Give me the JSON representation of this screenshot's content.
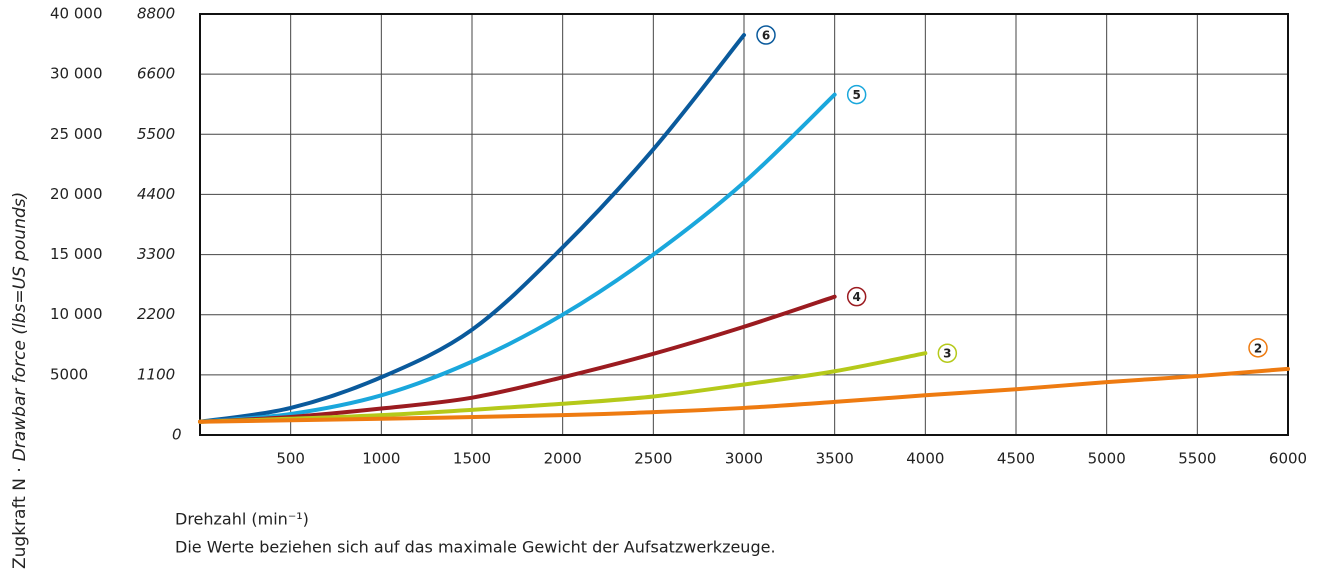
{
  "chart_data": {
    "type": "line",
    "y_axis_label_main": "Zugkraft  N ·",
    "y_axis_label_italic": "Drawbar force (lbs=US pounds)",
    "x_axis_label": "Drehzahl (min⁻¹)",
    "note": "Die Werte beziehen sich auf das maximale Gewicht der Aufsatzwerkzeuge.",
    "xlim": [
      0,
      6000
    ],
    "xticks": [
      500,
      1000,
      1500,
      2000,
      2500,
      3000,
      3500,
      4000,
      4500,
      5000,
      5500,
      6000
    ],
    "ylim": [
      0,
      40000
    ],
    "yticks": [
      0,
      5000,
      {
        "value": 10000,
        "label": "10 000"
      },
      {
        "value": 15000,
        "label": "15 000"
      },
      {
        "value": 20000,
        "label": "20 000"
      },
      {
        "value": 25000,
        "label": "25 000"
      },
      {
        "value": 30000,
        "label": "30 000"
      },
      {
        "value": 40000,
        "label": "40 000"
      }
    ],
    "y2lim": [
      0,
      8800
    ],
    "y2ticks": [
      0,
      1100,
      2200,
      3300,
      4400,
      5500,
      6600,
      8800
    ],
    "grid": true,
    "series": [
      {
        "name": "6",
        "color": "#0a5a9c",
        "x": [
          0,
          500,
          1000,
          1500,
          2000,
          2500,
          3000
        ],
        "values": [
          1100,
          2250,
          4800,
          8750,
          15600,
          23750,
          36500
        ]
      },
      {
        "name": "5",
        "color": "#1aa7dc",
        "x": [
          0,
          500,
          1000,
          1500,
          2000,
          2500,
          3000,
          3500
        ],
        "values": [
          1100,
          1750,
          3300,
          6100,
          10000,
          15000,
          21000,
          28300
        ]
      },
      {
        "name": "4",
        "color": "#9b1b20",
        "x": [
          0,
          500,
          1000,
          1500,
          2000,
          2500,
          3000,
          3500
        ],
        "values": [
          1100,
          1500,
          2200,
          3100,
          4800,
          6750,
          9000,
          11500
        ]
      },
      {
        "name": "3",
        "color": "#b5c91a",
        "x": [
          0,
          1000,
          2000,
          2500,
          3000,
          3500,
          4000
        ],
        "values": [
          1100,
          1650,
          2600,
          3200,
          4200,
          5300,
          6800
        ]
      },
      {
        "name": "2",
        "color": "#ee7b11",
        "x": [
          0,
          1000,
          2000,
          2500,
          3000,
          3500,
          4000,
          4500,
          5000,
          5500,
          6000
        ],
        "values": [
          1100,
          1350,
          1650,
          1900,
          2250,
          2750,
          3300,
          3800,
          4400,
          4900,
          5500
        ]
      }
    ]
  }
}
